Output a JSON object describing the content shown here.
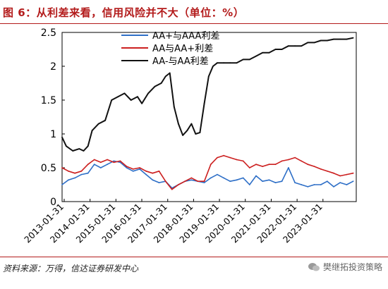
{
  "figure": {
    "title": "图 6：从利差来看，信用风险并不大（单位：%）",
    "source": "资料来源：万得，信达证券研发中心",
    "watermark": "樊继拓投资策略",
    "watermark_icon": "wechat-icon",
    "accent_color": "#b31b1b"
  },
  "chart_data": {
    "type": "line",
    "title": "",
    "xlabel": "",
    "ylabel": "",
    "ylim": [
      0,
      2.5
    ],
    "yticks": [
      0,
      0.5,
      1,
      1.5,
      2,
      2.5
    ],
    "ytick_labels": [
      "0",
      "0.5",
      "1",
      "1.5",
      "2",
      "2.5"
    ],
    "xlim": [
      "2013-01-01",
      "2024-05-15"
    ],
    "xtick_labels": [
      "2013-01-31",
      "2014-01-31",
      "2015-01-31",
      "2016-01-31",
      "2017-01-31",
      "2018-01-31",
      "2019-01-31",
      "2020-01-31",
      "2021-01-31",
      "2022-01-31",
      "2023-01-31"
    ],
    "grid": false,
    "legend": "top-center",
    "series": [
      {
        "name": "AA+与AAA利差",
        "color": "#2e6fc7",
        "x": [
          "2013-01-01",
          "2013-04-01",
          "2013-07-01",
          "2013-10-01",
          "2014-01-01",
          "2014-04-01",
          "2014-07-01",
          "2014-10-01",
          "2015-01-01",
          "2015-04-01",
          "2015-07-01",
          "2015-10-01",
          "2016-01-01",
          "2016-04-01",
          "2016-07-01",
          "2016-10-01",
          "2017-01-01",
          "2017-04-01",
          "2017-07-01",
          "2017-10-01",
          "2018-01-01",
          "2018-04-01",
          "2018-07-01",
          "2018-10-01",
          "2019-01-01",
          "2019-04-01",
          "2019-07-01",
          "2019-10-01",
          "2020-01-01",
          "2020-04-01",
          "2020-07-01",
          "2020-10-01",
          "2021-01-01",
          "2021-04-01",
          "2021-07-01",
          "2021-10-01",
          "2022-01-01",
          "2022-04-01",
          "2022-07-01",
          "2022-10-01",
          "2023-01-01",
          "2023-04-01",
          "2023-07-01",
          "2023-10-01",
          "2024-01-01",
          "2024-04-01"
        ],
        "values": [
          0.25,
          0.32,
          0.35,
          0.4,
          0.42,
          0.55,
          0.5,
          0.55,
          0.6,
          0.58,
          0.5,
          0.45,
          0.48,
          0.4,
          0.32,
          0.28,
          0.3,
          0.2,
          0.25,
          0.3,
          0.32,
          0.3,
          0.28,
          0.35,
          0.4,
          0.35,
          0.3,
          0.32,
          0.35,
          0.25,
          0.38,
          0.3,
          0.32,
          0.28,
          0.3,
          0.5,
          0.28,
          0.25,
          0.22,
          0.25,
          0.25,
          0.3,
          0.22,
          0.28,
          0.25,
          0.3
        ]
      },
      {
        "name": "AA与AA+利差",
        "color": "#cc1f1f",
        "x": [
          "2013-01-01",
          "2013-04-01",
          "2013-07-01",
          "2013-10-01",
          "2014-01-01",
          "2014-04-01",
          "2014-07-01",
          "2014-10-01",
          "2015-01-01",
          "2015-04-01",
          "2015-07-01",
          "2015-10-01",
          "2016-01-01",
          "2016-04-01",
          "2016-07-01",
          "2016-10-01",
          "2017-01-01",
          "2017-04-01",
          "2017-07-01",
          "2017-10-01",
          "2018-01-01",
          "2018-04-01",
          "2018-07-01",
          "2018-10-01",
          "2019-01-01",
          "2019-04-01",
          "2019-07-01",
          "2019-10-01",
          "2020-01-01",
          "2020-04-01",
          "2020-07-01",
          "2020-10-01",
          "2021-01-01",
          "2021-04-01",
          "2021-07-01",
          "2021-10-01",
          "2022-01-01",
          "2022-04-01",
          "2022-07-01",
          "2022-10-01",
          "2023-01-01",
          "2023-04-01",
          "2023-07-01",
          "2023-10-01",
          "2024-01-01",
          "2024-04-01"
        ],
        "values": [
          0.5,
          0.45,
          0.42,
          0.45,
          0.55,
          0.62,
          0.58,
          0.62,
          0.58,
          0.6,
          0.52,
          0.48,
          0.5,
          0.45,
          0.42,
          0.45,
          0.3,
          0.18,
          0.25,
          0.3,
          0.35,
          0.3,
          0.3,
          0.55,
          0.65,
          0.68,
          0.65,
          0.62,
          0.6,
          0.5,
          0.55,
          0.52,
          0.55,
          0.55,
          0.6,
          0.62,
          0.65,
          0.6,
          0.55,
          0.52,
          0.48,
          0.45,
          0.42,
          0.38,
          0.4,
          0.42
        ]
      },
      {
        "name": "AA-与AA利差",
        "color": "#111111",
        "x": [
          "2013-01-01",
          "2013-03-01",
          "2013-06-01",
          "2013-09-01",
          "2013-11-01",
          "2014-01-01",
          "2014-03-01",
          "2014-06-01",
          "2014-09-01",
          "2014-12-01",
          "2015-03-01",
          "2015-06-01",
          "2015-09-01",
          "2015-12-01",
          "2016-02-01",
          "2016-05-01",
          "2016-08-01",
          "2016-11-01",
          "2017-01-01",
          "2017-03-01",
          "2017-05-01",
          "2017-07-01",
          "2017-09-01",
          "2017-11-01",
          "2018-01-01",
          "2018-03-01",
          "2018-05-01",
          "2018-07-01",
          "2018-09-01",
          "2018-11-01",
          "2019-01-01",
          "2019-04-01",
          "2019-07-01",
          "2019-10-01",
          "2020-01-01",
          "2020-04-01",
          "2020-07-01",
          "2020-10-01",
          "2021-01-01",
          "2021-04-01",
          "2021-07-01",
          "2021-10-01",
          "2022-01-01",
          "2022-04-01",
          "2022-07-01",
          "2022-10-01",
          "2023-01-01",
          "2023-04-01",
          "2023-07-01",
          "2023-10-01",
          "2024-01-01",
          "2024-04-01"
        ],
        "values": [
          0.95,
          0.82,
          0.75,
          0.78,
          0.75,
          0.82,
          1.05,
          1.15,
          1.2,
          1.5,
          1.55,
          1.6,
          1.5,
          1.55,
          1.45,
          1.6,
          1.7,
          1.75,
          1.85,
          1.9,
          1.4,
          1.15,
          0.98,
          1.05,
          1.15,
          1.0,
          1.02,
          1.45,
          1.85,
          2.0,
          2.05,
          2.05,
          2.05,
          2.05,
          2.1,
          2.1,
          2.15,
          2.2,
          2.2,
          2.25,
          2.25,
          2.3,
          2.3,
          2.3,
          2.35,
          2.35,
          2.38,
          2.38,
          2.4,
          2.4,
          2.4,
          2.42
        ]
      }
    ]
  }
}
